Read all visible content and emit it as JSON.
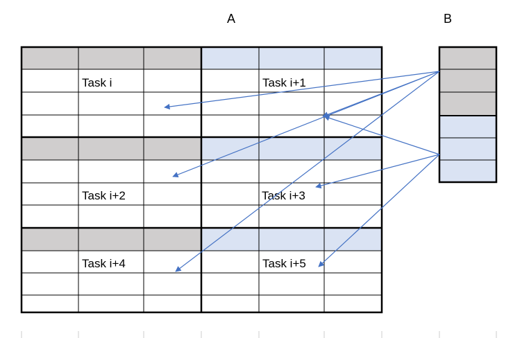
{
  "labels": {
    "matrix_a": "A",
    "matrix_b": "B"
  },
  "tasks": [
    "Task i",
    "Task i+1",
    "Task i+2",
    "Task i+3",
    "Task i+4",
    "Task i+5"
  ],
  "colors": {
    "gray_row": "#d0cece",
    "blue_row": "#dae3f3",
    "arrow": "#4472c4",
    "thin_line": "#000000",
    "faint_line": "#cccccc"
  }
}
